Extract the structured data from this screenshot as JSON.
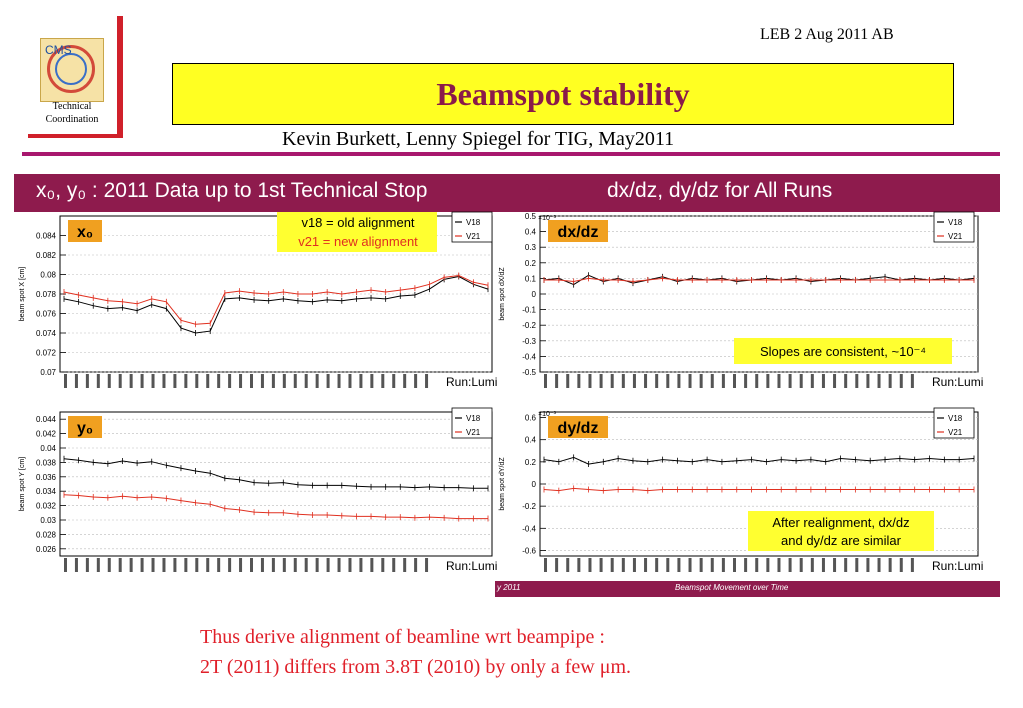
{
  "header": {
    "logo_text": "CMS",
    "logo_caption_1": "Technical",
    "logo_caption_2": "Coordination",
    "date_tag": "LEB 2 Aug 2011 AB",
    "title": "Beamspot stability",
    "authors": "Kevin Burkett, Lenny Spiegel for TIG, May2011"
  },
  "bands": {
    "left": "x₀, y₀ : 2011 Data up to 1st Technical Stop",
    "right": "dx/dz, dy/dz for All Runs"
  },
  "footer": {
    "left": "y 2011",
    "center": "Beamspot Movement over Time"
  },
  "conclusion": {
    "line1": "Thus derive alignment of beamline wrt beampipe :",
    "line2": "2T (2011) differs from 3.8T (2010) by only a few μm."
  },
  "colors": {
    "band": "#8e1b4d",
    "title_fill": "#ffff22",
    "title_text": "#8a1a4a",
    "accent_red": "#d0202a",
    "series_v18": "#000000",
    "series_v21": "#e03020",
    "label_box": "#f0a020",
    "note_box": "#ffff30"
  },
  "chart_data": [
    {
      "type": "scatter",
      "label_tag": "x₀",
      "ylabel": "beam spot X [cm]",
      "xlabel": "Run:Lumi",
      "ylim": [
        0.07,
        0.086
      ],
      "yticks": [
        "0.084",
        "0.082",
        "0.08",
        "0.078",
        "0.076",
        "0.074",
        "0.072",
        "0.07"
      ],
      "ytick_values": [
        0.084,
        0.082,
        0.08,
        0.078,
        0.076,
        0.074,
        0.072,
        0.07
      ],
      "annotations": [
        "v18 = old alignment",
        "v21 = new alignment"
      ],
      "series": [
        {
          "name": "V18",
          "values": [
            0.0775,
            0.0772,
            0.0768,
            0.0765,
            0.0766,
            0.0763,
            0.0769,
            0.0765,
            0.0745,
            0.074,
            0.0742,
            0.0775,
            0.0776,
            0.0774,
            0.0773,
            0.0775,
            0.0773,
            0.0772,
            0.0774,
            0.0773,
            0.0775,
            0.0776,
            0.0775,
            0.0778,
            0.0779,
            0.0785,
            0.0795,
            0.0798,
            0.079,
            0.0785
          ]
        },
        {
          "name": "V21",
          "values": [
            0.0782,
            0.0779,
            0.0776,
            0.0773,
            0.0772,
            0.077,
            0.0775,
            0.0772,
            0.0753,
            0.0749,
            0.075,
            0.0781,
            0.0783,
            0.0781,
            0.078,
            0.0782,
            0.078,
            0.078,
            0.0782,
            0.078,
            0.0782,
            0.0784,
            0.0782,
            0.0784,
            0.0786,
            0.079,
            0.0797,
            0.0799,
            0.0792,
            0.0789
          ]
        }
      ]
    },
    {
      "type": "scatter",
      "label_tag": "y₀",
      "ylabel": "beam spot Y [cm]",
      "xlabel": "Run:Lumi",
      "ylim": [
        0.025,
        0.045
      ],
      "yticks": [
        "0.044",
        "0.042",
        "0.04",
        "0.038",
        "0.036",
        "0.034",
        "0.032",
        "0.03",
        "0.028",
        "0.026"
      ],
      "ytick_values": [
        0.044,
        0.042,
        0.04,
        0.038,
        0.036,
        0.034,
        0.032,
        0.03,
        0.028,
        0.026
      ],
      "series": [
        {
          "name": "V18",
          "values": [
            0.0385,
            0.0383,
            0.038,
            0.0378,
            0.0382,
            0.0379,
            0.0381,
            0.0376,
            0.0372,
            0.0368,
            0.0365,
            0.0358,
            0.0356,
            0.0352,
            0.0351,
            0.0352,
            0.0349,
            0.0348,
            0.0348,
            0.0348,
            0.0347,
            0.0346,
            0.0346,
            0.0346,
            0.0345,
            0.0346,
            0.0345,
            0.0345,
            0.0344,
            0.0344
          ]
        },
        {
          "name": "V21",
          "values": [
            0.0335,
            0.0334,
            0.0332,
            0.0331,
            0.0333,
            0.0331,
            0.0332,
            0.033,
            0.0327,
            0.0324,
            0.0322,
            0.0316,
            0.0314,
            0.0311,
            0.031,
            0.031,
            0.0308,
            0.0307,
            0.0307,
            0.0306,
            0.0305,
            0.0305,
            0.0304,
            0.0304,
            0.0303,
            0.0304,
            0.0303,
            0.0302,
            0.0302,
            0.0302
          ]
        }
      ]
    },
    {
      "type": "scatter",
      "label_tag": "dx/dz",
      "ylabel": "beam spot dX/dZ",
      "xlabel": "Run:Lumi",
      "scale_label": "×10⁻³",
      "ylim": [
        -0.5,
        0.5
      ],
      "yticks": [
        "0.5",
        "0.4",
        "0.3",
        "0.2",
        "0.1",
        "0",
        "-0.1",
        "-0.2",
        "-0.3",
        "-0.4",
        "-0.5"
      ],
      "ytick_values": [
        0.5,
        0.4,
        0.3,
        0.2,
        0.1,
        0,
        -0.1,
        -0.2,
        -0.3,
        -0.4,
        -0.5
      ],
      "annotations": [
        "Slopes are consistent, ~10⁻⁴"
      ],
      "series": [
        {
          "name": "V18",
          "values": [
            0.09,
            0.1,
            0.06,
            0.12,
            0.08,
            0.1,
            0.07,
            0.09,
            0.11,
            0.08,
            0.1,
            0.09,
            0.1,
            0.08,
            0.09,
            0.1,
            0.09,
            0.1,
            0.08,
            0.09,
            0.1,
            0.09,
            0.1,
            0.11,
            0.09,
            0.1,
            0.09,
            0.1,
            0.09,
            0.1
          ]
        },
        {
          "name": "V21",
          "values": [
            0.09,
            0.09,
            0.08,
            0.1,
            0.09,
            0.09,
            0.08,
            0.09,
            0.1,
            0.09,
            0.09,
            0.09,
            0.09,
            0.09,
            0.09,
            0.09,
            0.09,
            0.09,
            0.09,
            0.09,
            0.09,
            0.09,
            0.09,
            0.09,
            0.09,
            0.09,
            0.09,
            0.09,
            0.09,
            0.09
          ]
        }
      ]
    },
    {
      "type": "scatter",
      "label_tag": "dy/dz",
      "ylabel": "beam spot dY/dZ",
      "xlabel": "Run:Lumi",
      "scale_label": "×10⁻³",
      "ylim": [
        -0.65,
        0.65
      ],
      "yticks": [
        "0.6",
        "0.4",
        "0.2",
        "0",
        "-0.2",
        "-0.4",
        "-0.6"
      ],
      "ytick_values": [
        0.6,
        0.4,
        0.2,
        0,
        -0.2,
        -0.4,
        -0.6
      ],
      "annotations": [
        "After realignment, dx/dz",
        "and dy/dz are similar"
      ],
      "series": [
        {
          "name": "V18",
          "values": [
            0.22,
            0.2,
            0.24,
            0.18,
            0.2,
            0.23,
            0.21,
            0.2,
            0.22,
            0.21,
            0.2,
            0.22,
            0.2,
            0.21,
            0.22,
            0.2,
            0.22,
            0.21,
            0.22,
            0.2,
            0.23,
            0.22,
            0.21,
            0.22,
            0.23,
            0.22,
            0.23,
            0.22,
            0.22,
            0.23
          ]
        },
        {
          "name": "V21",
          "values": [
            -0.05,
            -0.06,
            -0.04,
            -0.05,
            -0.06,
            -0.05,
            -0.05,
            -0.06,
            -0.05,
            -0.05,
            -0.05,
            -0.05,
            -0.05,
            -0.05,
            -0.05,
            -0.05,
            -0.05,
            -0.05,
            -0.05,
            -0.05,
            -0.05,
            -0.05,
            -0.05,
            -0.05,
            -0.05,
            -0.05,
            -0.05,
            -0.05,
            -0.05,
            -0.05
          ]
        }
      ]
    }
  ]
}
